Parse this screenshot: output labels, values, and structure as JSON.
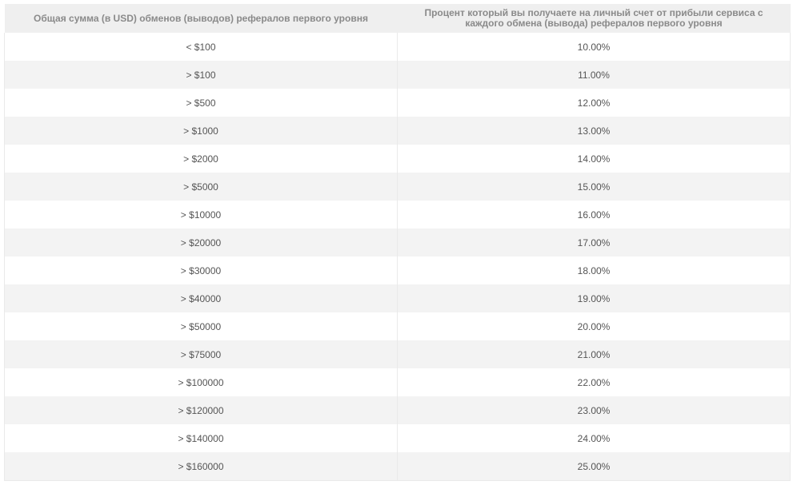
{
  "table": {
    "header": [
      "Общая сумма (в USD) обменов (выводов) рефералов первого уровня",
      "Процент который вы получаете на личный счет от прибыли сервиса с каждого обмена (вывода) рефералов первого уровня"
    ],
    "rows": [
      [
        "< $100",
        "10.00%"
      ],
      [
        "> $100",
        "11.00%"
      ],
      [
        "> $500",
        "12.00%"
      ],
      [
        "> $1000",
        "13.00%"
      ],
      [
        "> $2000",
        "14.00%"
      ],
      [
        "> $5000",
        "15.00%"
      ],
      [
        "> $10000",
        "16.00%"
      ],
      [
        "> $20000",
        "17.00%"
      ],
      [
        "> $30000",
        "18.00%"
      ],
      [
        "> $40000",
        "19.00%"
      ],
      [
        "> $50000",
        "20.00%"
      ],
      [
        "> $75000",
        "21.00%"
      ],
      [
        "> $100000",
        "22.00%"
      ],
      [
        "> $120000",
        "23.00%"
      ],
      [
        "> $140000",
        "24.00%"
      ],
      [
        "> $160000",
        "25.00%"
      ]
    ]
  }
}
